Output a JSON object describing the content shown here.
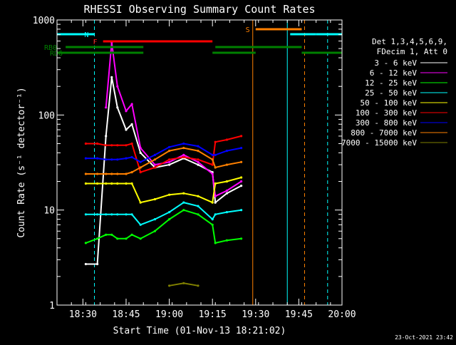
{
  "chart_data": {
    "type": "line",
    "title": "RHESSI Observing Summary Count Rates",
    "xlabel": "Start Time (01-Nov-13 18:21:02)",
    "ylabel": "Count Rate (s⁻¹ detector⁻¹)",
    "y_scale": "log",
    "xlim": [
      "18:21",
      "20:00"
    ],
    "ylim": [
      1,
      1000
    ],
    "x_ticks": [
      "18:30",
      "18:45",
      "19:00",
      "19:15",
      "19:30",
      "19:45",
      "20:00"
    ],
    "y_ticks": [
      {
        "value": 1,
        "label": "1"
      },
      {
        "value": 10,
        "label": "10"
      },
      {
        "value": 100,
        "label": "100"
      },
      {
        "value": 1000,
        "label": "1000"
      }
    ],
    "legend_position": "right",
    "legend_header": [
      "Det 1,3,4,5,6,9,",
      "FDecim 1, Att 0"
    ],
    "footer_timestamp": "23-Oct-2021 23:42",
    "x": [
      "18:31",
      "18:35",
      "18:38",
      "18:40",
      "18:42",
      "18:45",
      "18:47",
      "18:50",
      "18:55",
      "19:00",
      "19:05",
      "19:10",
      "19:15",
      "19:16",
      "19:20",
      "19:25"
    ],
    "series": [
      {
        "name": "3 - 6 keV",
        "color": "#ffffff",
        "values": [
          2.7,
          2.7,
          60,
          250,
          120,
          70,
          80,
          40,
          28,
          30,
          35,
          30,
          25,
          12,
          15,
          18
        ]
      },
      {
        "name": "6 - 12 keV",
        "color": "#ff00ff",
        "values": [
          null,
          null,
          120,
          580,
          200,
          110,
          130,
          45,
          30,
          32,
          38,
          32,
          24,
          14,
          16,
          20
        ]
      },
      {
        "name": "12 - 25 keV",
        "color": "#00ff00",
        "values": [
          4.5,
          5,
          5.5,
          5.5,
          5,
          5,
          5.5,
          5,
          6,
          8,
          10,
          9,
          7,
          4.5,
          4.8,
          5
        ]
      },
      {
        "name": "25 - 50 keV",
        "color": "#00ffff",
        "values": [
          9,
          9,
          9,
          9,
          9,
          9,
          9,
          7,
          8,
          9.5,
          12,
          11,
          8,
          9,
          9.5,
          10
        ]
      },
      {
        "name": "50 - 100 keV",
        "color": "#ffff00",
        "values": [
          19,
          19,
          19,
          19,
          19,
          19,
          19,
          12,
          13,
          14.5,
          15,
          14,
          12,
          19,
          20,
          22
        ]
      },
      {
        "name": "100 - 300 keV",
        "color": "#ff0000",
        "values": [
          50,
          50,
          48,
          48,
          48,
          48,
          50,
          25,
          28,
          34,
          36,
          34,
          30,
          52,
          55,
          60
        ]
      },
      {
        "name": "300 - 800 keV",
        "color": "#0000ff",
        "values": [
          35,
          35,
          34,
          34,
          34,
          35,
          36,
          32,
          38,
          46,
          50,
          47,
          38,
          38,
          42,
          45
        ]
      },
      {
        "name": "800 - 7000 keV",
        "color": "#ff8000",
        "values": [
          24,
          24,
          24,
          24,
          24,
          24,
          25,
          28,
          34,
          42,
          45,
          42,
          34,
          28,
          30,
          32
        ]
      },
      {
        "name": "7000 - 15000 keV",
        "color": "#808000",
        "values": [
          null,
          null,
          null,
          null,
          null,
          null,
          null,
          null,
          null,
          1.6,
          1.7,
          1.6,
          null,
          null,
          null,
          null
        ]
      }
    ],
    "flag_bars": [
      {
        "label": "N",
        "color": "#00ffff",
        "segments": [
          [
            "18:21",
            "18:34"
          ],
          [
            "19:42",
            "19:51"
          ],
          [
            "19:51",
            "20:00"
          ]
        ]
      },
      {
        "label": "F",
        "color": "#ff0000",
        "segments": [
          [
            "18:37",
            "19:15"
          ]
        ]
      },
      {
        "label": "S",
        "color": "#ff8000",
        "segments": [
          [
            "19:30",
            "19:46"
          ]
        ]
      },
      {
        "label": "RB0",
        "color": "#008000",
        "segments": [
          [
            "18:24",
            "18:51"
          ],
          [
            "19:16",
            "19:46"
          ]
        ]
      },
      {
        "label": "RD6",
        "color": "#008000",
        "segments": [
          [
            "18:21",
            "18:51"
          ],
          [
            "19:15",
            "19:30"
          ],
          [
            "19:46",
            "20:00"
          ]
        ]
      }
    ],
    "vertical_markers": [
      {
        "time": "18:21",
        "color": "#00ffff",
        "style": "solid"
      },
      {
        "time": "18:34",
        "color": "#00ffff",
        "style": "dashed"
      },
      {
        "time": "19:29",
        "color": "#ff8000",
        "style": "solid"
      },
      {
        "time": "19:41",
        "color": "#00ffff",
        "style": "solid"
      },
      {
        "time": "19:47",
        "color": "#ff8000",
        "style": "dashed"
      },
      {
        "time": "19:55",
        "color": "#00ffff",
        "style": "dashed"
      }
    ]
  }
}
